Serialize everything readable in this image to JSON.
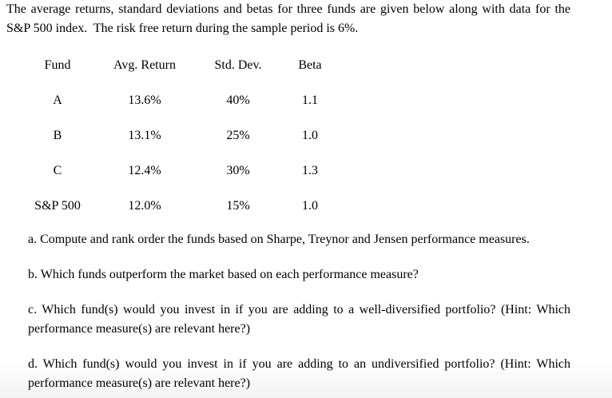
{
  "page": {
    "background": "#ffffff",
    "text_color": "#000000"
  },
  "intro": {
    "lines": [
      "The average returns, standard deviations and betas for three funds are given below along with data for the",
      "S&P 500 index.  The risk free return during the sample period is 6%."
    ]
  },
  "table": {
    "headers": [
      "Fund",
      "Avg. Return",
      "Std. Dev.",
      "Beta"
    ],
    "rows": [
      {
        "fund": "A",
        "avg_return": "13.6%",
        "std_dev": "40%",
        "beta": "1.1"
      },
      {
        "fund": "B",
        "avg_return": "13.1%",
        "std_dev": "25%",
        "beta": "1.0"
      },
      {
        "fund": "C",
        "avg_return": "12.4%",
        "std_dev": "30%",
        "beta": "1.3"
      },
      {
        "fund": "S&P 500",
        "avg_return": "12.0%",
        "std_dev": "15%",
        "beta": "1.0"
      }
    ]
  },
  "questions": [
    {
      "label": "a.",
      "lines": [
        "Compute and rank order the funds based on Sharpe, Treynor and Jensen performance measures."
      ]
    },
    {
      "label": "b.",
      "lines": [
        "Which funds outperform the market based on each performance measure?"
      ]
    },
    {
      "label": "c.",
      "lines": [
        "Which fund(s) would you invest in if you are adding to a well-diversified portfolio? (Hint: Which",
        "performance measure(s) are relevant here?)"
      ]
    },
    {
      "label": "d.",
      "lines": [
        "Which fund(s) would you invest in if you are adding to an undiversified portfolio? (Hint: Which",
        "performance measure(s) are relevant here?)"
      ]
    }
  ]
}
